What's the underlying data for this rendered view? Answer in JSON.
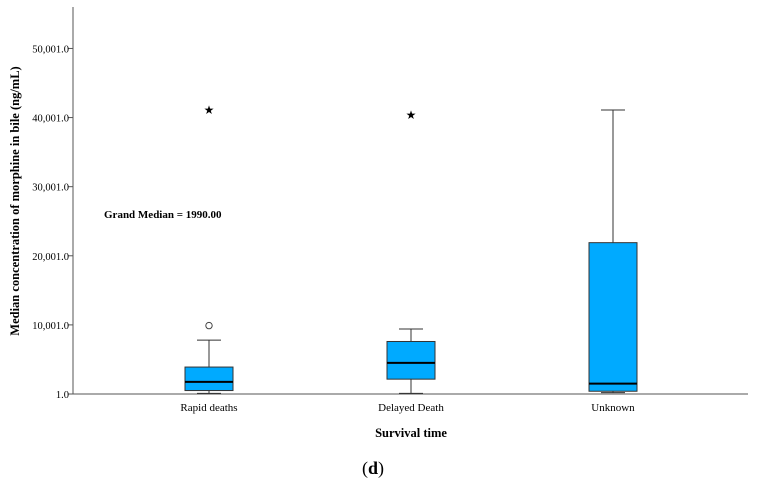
{
  "chart_data": {
    "type": "boxplot",
    "xlabel": "Survival time",
    "ylabel": "Median concentration of morphine in bile (ng/mL)",
    "ylim": [
      1,
      56000
    ],
    "y_ticks": [
      1,
      10001,
      20001,
      30001,
      40001,
      50001
    ],
    "y_tick_labels": [
      "1.0",
      "10,001.0",
      "20,001.0",
      "30,001.0",
      "40,001.0",
      "50,001.0"
    ],
    "annotation": "Grand Median = 1990.00",
    "panel_label": {
      "open": "(",
      "letter": "d",
      "close": ")"
    },
    "colors": {
      "box_fill": "#00aaff",
      "box_stroke": "#333333",
      "median_line": "#000000",
      "axis": "#555555"
    },
    "categories": [
      "Rapid deaths",
      "Delayed Death",
      "Unknown"
    ],
    "boxes": [
      {
        "category": "Rapid deaths",
        "whisker_low": 100,
        "q1": 500,
        "median": 1750,
        "q3": 3900,
        "whisker_high": 7800,
        "outliers": [
          {
            "value": 9900,
            "marker": "circle"
          },
          {
            "value": 41100,
            "marker": "star"
          }
        ]
      },
      {
        "category": "Delayed Death",
        "whisker_low": 100,
        "q1": 2150,
        "median": 4500,
        "q3": 7600,
        "whisker_high": 9400,
        "outliers": [
          {
            "value": 40400,
            "marker": "star"
          }
        ]
      },
      {
        "category": "Unknown",
        "whisker_low": 200,
        "q1": 400,
        "median": 1500,
        "q3": 21900,
        "whisker_high": 41100,
        "outliers": []
      }
    ]
  }
}
